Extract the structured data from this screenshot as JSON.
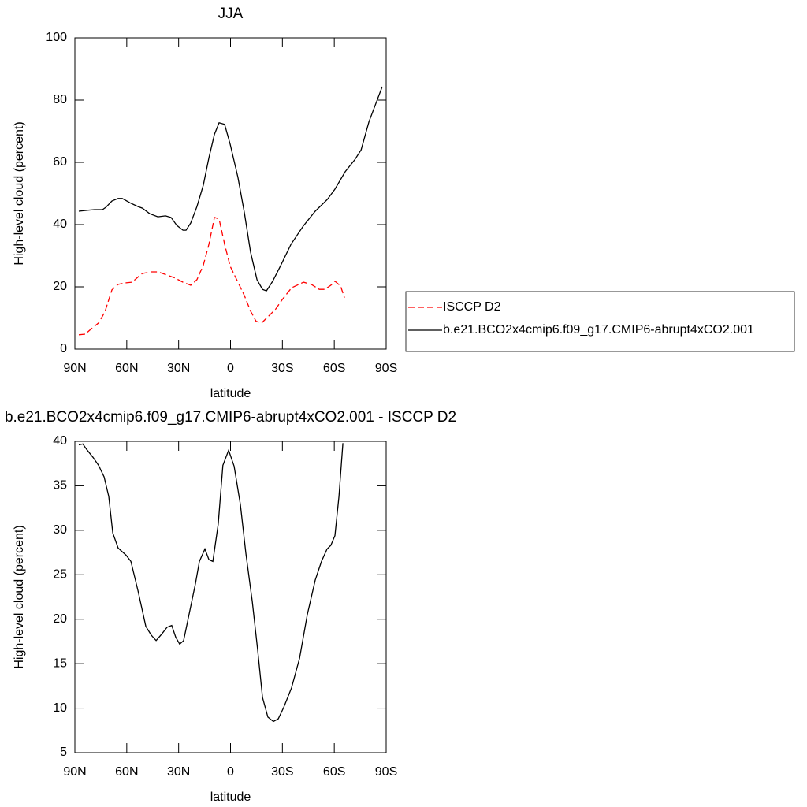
{
  "chart_data": [
    {
      "type": "line",
      "title": "JJA",
      "xlabel": "latitude",
      "ylabel": "High-level cloud (percent)",
      "xlim": [
        90,
        -90
      ],
      "ylim": [
        0,
        100
      ],
      "xticks": [
        {
          "value": 90,
          "label": "90N"
        },
        {
          "value": 60,
          "label": "60N"
        },
        {
          "value": 30,
          "label": "30N"
        },
        0,
        {
          "value": -30,
          "label": "30S"
        },
        {
          "value": -60,
          "label": "60S"
        },
        {
          "value": -90,
          "label": "90S"
        }
      ],
      "yticks": [
        0,
        20,
        40,
        60,
        80,
        100
      ],
      "legend": "right",
      "series": [
        {
          "name": "ISCCP D2",
          "color": "#ff0000",
          "dashed": true,
          "x": [
            87.7,
            84,
            81,
            76.3,
            72.7,
            68.6,
            65,
            60.4,
            57,
            51,
            45.8,
            42,
            36.7,
            32,
            27.5,
            23,
            19.4,
            15.7,
            12.5,
            9.3,
            6.6,
            3.4,
            0.2,
            -4.3,
            -8,
            -11.6,
            -14.8,
            -18,
            -22.6,
            -26.2,
            -29.9,
            -35.3,
            -42.2,
            -46.7,
            -51.3,
            -54.5,
            -58,
            -60.4,
            -63.6,
            -65.9
          ],
          "values": [
            4.6,
            4.8,
            6.3,
            8.4,
            11.9,
            19,
            20.8,
            21.3,
            21.5,
            24.3,
            24.8,
            24.8,
            23.8,
            22.8,
            21.5,
            20.5,
            22.3,
            27,
            33.7,
            42.3,
            41.8,
            33.7,
            26.6,
            21.5,
            17.2,
            12.2,
            8.9,
            8.4,
            10.9,
            12.9,
            15.9,
            19.7,
            21.5,
            20.8,
            19.2,
            19.2,
            20.5,
            21.8,
            20.3,
            16.5
          ]
        },
        {
          "name": "b.e21.BCO2x4cmip6.f09_g17.CMIP6-abrupt4xCO2.001",
          "color": "#000000",
          "dashed": false,
          "x": [
            87.7,
            83,
            78.6,
            74,
            72,
            68.6,
            65,
            62.6,
            58,
            53.5,
            51,
            46.7,
            42,
            37.6,
            34.4,
            31,
            27.5,
            25.7,
            23,
            19.4,
            15.7,
            12.5,
            9.3,
            6.6,
            3.4,
            0.2,
            -4.3,
            -8,
            -11.6,
            -15.3,
            -18.5,
            -20.8,
            -24.4,
            -29,
            -35,
            -42,
            -49,
            -56,
            -60.4,
            -66.3,
            -71.8,
            -75.5,
            -80,
            -84.6,
            -87.7
          ],
          "values": [
            44.3,
            44.6,
            44.8,
            44.8,
            45.6,
            47.6,
            48.4,
            48.4,
            47,
            45.8,
            45.3,
            43.5,
            42.5,
            42.8,
            42.3,
            39.7,
            38.2,
            38.2,
            40.5,
            45.8,
            52.7,
            61.5,
            69,
            72.7,
            72.2,
            65.8,
            55.2,
            43.8,
            31.1,
            22.3,
            19.2,
            18.7,
            21.8,
            26.8,
            33.7,
            39.5,
            44.3,
            48.1,
            51.4,
            57,
            60.8,
            64,
            73,
            79.7,
            84.3
          ]
        }
      ]
    },
    {
      "type": "line",
      "title": "b.e21.BCO2x4cmip6.f09_g17.CMIP6-abrupt4xCO2.001 - ISCCP D2",
      "xlabel": "latitude",
      "ylabel": "High-level cloud (percent)",
      "xlim": [
        90,
        -90
      ],
      "ylim": [
        5,
        40
      ],
      "xticks": [
        {
          "value": 90,
          "label": "90N"
        },
        {
          "value": 60,
          "label": "60N"
        },
        {
          "value": 30,
          "label": "30N"
        },
        0,
        {
          "value": -30,
          "label": "30S"
        },
        {
          "value": -60,
          "label": "60S"
        },
        {
          "value": -90,
          "label": "90S"
        }
      ],
      "yticks": [
        5,
        10,
        15,
        20,
        25,
        30,
        35,
        40
      ],
      "series": [
        {
          "color": "#000000",
          "dashed": false,
          "x": [
            87.7,
            85.4,
            83.2,
            79.5,
            76.3,
            73.1,
            70.4,
            68.1,
            65,
            60.4,
            57.6,
            53.5,
            49,
            45.8,
            43,
            39.9,
            36.7,
            34,
            31.7,
            29.4,
            27.1,
            24,
            20.3,
            18,
            14.8,
            12.5,
            10.2,
            7.1,
            4.4,
            1.1,
            -2.1,
            -5.7,
            -8.9,
            -12.6,
            -15.7,
            -18.5,
            -21.6,
            -24.8,
            -27.6,
            -30.8,
            -35.3,
            -39.9,
            -44.4,
            -49,
            -52.6,
            -55.8,
            -58,
            -60.4,
            -62.7,
            -65
          ],
          "values": [
            39.6,
            39.7,
            39.1,
            38.2,
            37.3,
            36,
            33.8,
            29.7,
            28,
            27.2,
            26.5,
            23.2,
            19.2,
            18.2,
            17.6,
            18.3,
            19.1,
            19.3,
            18,
            17.2,
            17.6,
            20.5,
            24,
            26.5,
            27.9,
            26.7,
            26.5,
            30.7,
            37.3,
            39,
            37.2,
            32.9,
            27.4,
            22,
            16.5,
            11.2,
            9,
            8.5,
            8.8,
            10.1,
            12.3,
            15.6,
            20.5,
            24.4,
            26.5,
            27.9,
            28.3,
            29.4,
            33.8,
            39.8
          ]
        }
      ]
    }
  ]
}
